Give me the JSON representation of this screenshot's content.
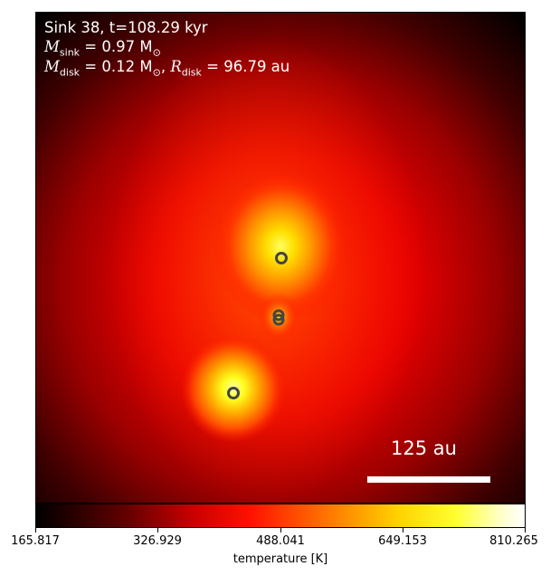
{
  "annotation": {
    "line1": "Sink 38, t=108.29 kyr",
    "msink_symbol": "M",
    "msink_sub": "sink",
    "msink_value": " = 0.97 M",
    "msink_sun": "⊙",
    "mdisk_symbol": "M",
    "mdisk_sub": "disk",
    "mdisk_value": " = 0.12 M",
    "mdisk_sun": "⊙",
    "sep": ", ",
    "rdisk_symbol": "R",
    "rdisk_sub": "disk",
    "rdisk_value": " = 96.79 au"
  },
  "scale_bar": {
    "label": "125 au"
  },
  "colorbar": {
    "label": "temperature [K]",
    "ticks": [
      "165.817",
      "326.929",
      "488.041",
      "649.153",
      "810.265"
    ],
    "cmap": "hot"
  },
  "sinks": [
    {
      "name": "sink-upper"
    },
    {
      "name": "sink-middle-a"
    },
    {
      "name": "sink-middle-b"
    },
    {
      "name": "sink-lower"
    }
  ]
}
